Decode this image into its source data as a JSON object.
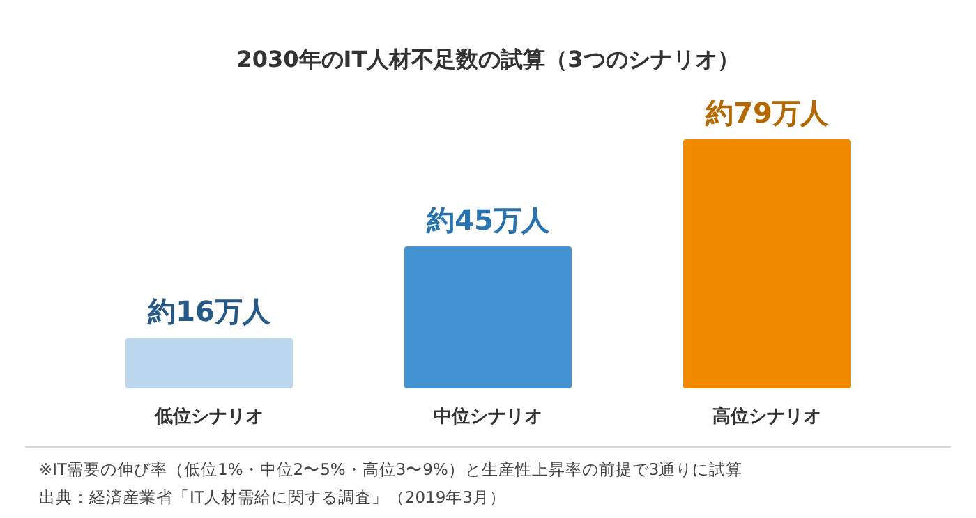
{
  "chart_data": {
    "type": "bar",
    "title": "2030年のIT人材不足数の試算（3つのシナリオ）",
    "categories": [
      "低位シナリオ",
      "中位シナリオ",
      "高位シナリオ"
    ],
    "values": [
      16,
      45,
      79
    ],
    "colors": [
      "#bcd6ee",
      "#4592d3",
      "#f28a00"
    ],
    "value_labels": [
      "約16万人",
      "約45万人",
      "約79万人"
    ],
    "annotations": [
      "※IT需要の伸び率（低位1%・中位2〜5%・高位3〜9%）と生産性上昇率の前提で3通りに試算",
      "出典：経済産業省「IT人材需給に関する調査」（2019年3月）"
    ]
  }
}
